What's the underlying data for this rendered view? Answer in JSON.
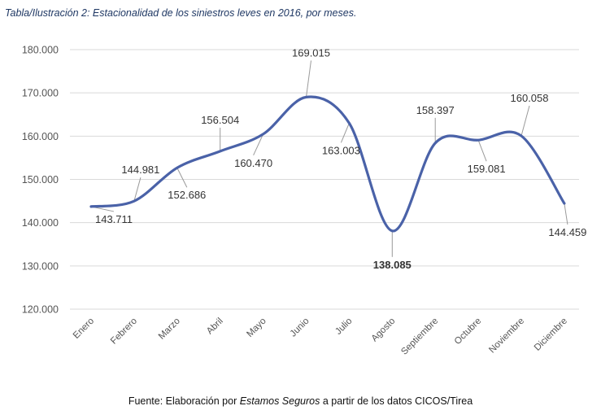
{
  "caption": "Tabla/Ilustración 2: Estacionalidad de los siniestros leves en 2016, por meses.",
  "source": {
    "prefix": "Fuente: Elaboración por ",
    "emphasis": "Estamos Seguros",
    "suffix": " a partir de los datos CICOS/Tirea"
  },
  "chart_data": {
    "type": "line",
    "categories": [
      "Enero",
      "Febrero",
      "Marzo",
      "Abril",
      "Mayo",
      "Junio",
      "Julio",
      "Agosto",
      "Septiembre",
      "Octubre",
      "Noviembre",
      "Diciembre"
    ],
    "series": [
      {
        "values": [
          143711,
          144981,
          152686,
          156504,
          160470,
          169015,
          163003,
          138085,
          158397,
          159081,
          160058,
          144459
        ]
      }
    ],
    "value_labels": [
      "143.711",
      "144.981",
      "152.686",
      "156.504",
      "160.470",
      "169.015",
      "163.003",
      "138.085",
      "158.397",
      "159.081",
      "160.058",
      "144.459"
    ],
    "bold_labels": [
      7
    ],
    "ylim": [
      120000,
      180000
    ],
    "yticks": [
      120000,
      130000,
      140000,
      150000,
      160000,
      170000,
      180000
    ],
    "ytick_labels": [
      "120.000",
      "130.000",
      "140.000",
      "150.000",
      "160.000",
      "170.000",
      "180.000"
    ],
    "grid": true,
    "line_color": "#4a62a8",
    "grid_color": "#d9d9d9"
  }
}
